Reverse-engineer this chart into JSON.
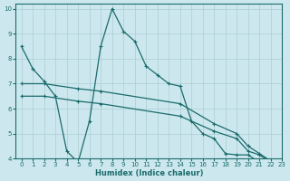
{
  "xlabel": "Humidex (Indice chaleur)",
  "xlim": [
    -0.5,
    23
  ],
  "ylim": [
    4,
    10.2
  ],
  "yticks": [
    4,
    5,
    6,
    7,
    8,
    9,
    10
  ],
  "xticks": [
    0,
    1,
    2,
    3,
    4,
    5,
    6,
    7,
    8,
    9,
    10,
    11,
    12,
    13,
    14,
    15,
    16,
    17,
    18,
    19,
    20,
    21,
    22,
    23
  ],
  "background_color": "#cce8ee",
  "grid_color": "#aacdd4",
  "line_color": "#1a6b6b",
  "line1_x": [
    0,
    1,
    2,
    3,
    4,
    5,
    6,
    7,
    8,
    9,
    10,
    11,
    12,
    13,
    14,
    15,
    16,
    17,
    18,
    19,
    20,
    21,
    22
  ],
  "line1_y": [
    8.5,
    7.6,
    7.1,
    6.5,
    4.3,
    3.85,
    5.5,
    8.5,
    10.0,
    9.1,
    8.7,
    7.7,
    7.35,
    7.0,
    6.9,
    5.5,
    5.0,
    4.8,
    4.2,
    4.15,
    4.15,
    3.85,
    null
  ],
  "line2_x": [
    0,
    2,
    5,
    7,
    14,
    17,
    19,
    20,
    21,
    22
  ],
  "line2_y": [
    7.0,
    7.0,
    6.8,
    6.7,
    6.2,
    5.4,
    5.0,
    4.5,
    4.2,
    3.9
  ],
  "line3_x": [
    0,
    2,
    5,
    7,
    14,
    17,
    19,
    20,
    21,
    22
  ],
  "line3_y": [
    6.5,
    6.5,
    6.3,
    6.2,
    5.7,
    5.1,
    4.8,
    4.3,
    4.15,
    3.85
  ]
}
